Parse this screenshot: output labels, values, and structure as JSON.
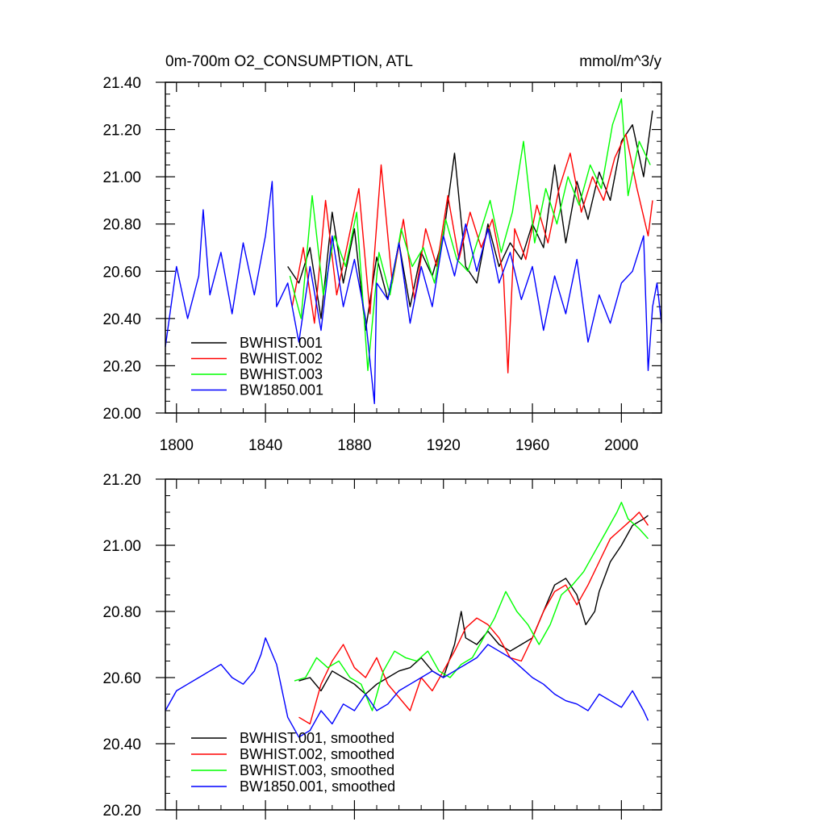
{
  "colors": {
    "BWHIST.001": "#000000",
    "BWHIST.002": "#ff0000",
    "BWHIST.003": "#00ff00",
    "BW1850.001": "#0000ff"
  },
  "chart_data": [
    {
      "type": "line",
      "title": "0m-700m O2_CONSUMPTION, ATL",
      "units": "mmol/m^3/y",
      "xlim": [
        1795,
        2018
      ],
      "ylim": [
        20.0,
        21.4
      ],
      "x_ticks": [
        1800,
        1840,
        1880,
        1920,
        1960,
        2000
      ],
      "x_tick_labels": [
        "1800",
        "1840",
        "1880",
        "1920",
        "1960",
        "2000"
      ],
      "y_ticks": [
        20.0,
        20.2,
        20.4,
        20.6,
        20.8,
        21.0,
        21.2,
        21.4
      ],
      "y_tick_labels": [
        "20.00",
        "20.20",
        "20.40",
        "20.60",
        "20.80",
        "21.00",
        "21.20",
        "21.40"
      ],
      "legend_position": "bottom-left",
      "series": [
        {
          "name": "BWHIST.001",
          "color": "#000000",
          "x": [
            1850,
            1855,
            1860,
            1865,
            1870,
            1875,
            1880,
            1885,
            1890,
            1895,
            1900,
            1905,
            1910,
            1915,
            1920,
            1925,
            1930,
            1935,
            1940,
            1945,
            1950,
            1955,
            1960,
            1965,
            1970,
            1975,
            1980,
            1985,
            1990,
            1995,
            2000,
            2005,
            2010,
            2014
          ],
          "values": [
            20.62,
            20.55,
            20.7,
            20.4,
            20.85,
            20.55,
            20.78,
            20.35,
            20.66,
            20.48,
            20.72,
            20.45,
            20.68,
            20.58,
            20.75,
            21.1,
            20.62,
            20.55,
            20.8,
            20.62,
            20.72,
            20.65,
            20.8,
            20.7,
            21.05,
            20.72,
            20.98,
            20.82,
            21.02,
            20.9,
            21.15,
            21.22,
            21.0,
            21.28
          ]
        },
        {
          "name": "BWHIST.002",
          "color": "#ff0000",
          "x": [
            1852,
            1857,
            1862,
            1867,
            1872,
            1877,
            1882,
            1887,
            1892,
            1897,
            1902,
            1907,
            1912,
            1917,
            1922,
            1927,
            1932,
            1937,
            1942,
            1947,
            1949,
            1952,
            1957,
            1962,
            1967,
            1972,
            1977,
            1982,
            1987,
            1992,
            1997,
            2002,
            2007,
            2012,
            2014
          ],
          "values": [
            20.45,
            20.7,
            20.38,
            20.9,
            20.5,
            20.72,
            20.95,
            20.42,
            21.05,
            20.55,
            20.82,
            20.48,
            20.78,
            20.62,
            20.92,
            20.65,
            20.85,
            20.7,
            20.82,
            20.58,
            20.17,
            20.78,
            20.65,
            20.88,
            20.72,
            20.95,
            21.1,
            20.85,
            21.0,
            20.9,
            21.08,
            21.18,
            20.95,
            20.75,
            20.9
          ]
        },
        {
          "name": "BWHIST.003",
          "color": "#00ff00",
          "x": [
            1851,
            1856,
            1861,
            1866,
            1871,
            1876,
            1881,
            1886,
            1891,
            1896,
            1901,
            1906,
            1911,
            1916,
            1921,
            1926,
            1931,
            1936,
            1941,
            1946,
            1951,
            1956,
            1961,
            1966,
            1971,
            1976,
            1981,
            1986,
            1991,
            1996,
            2000,
            2003,
            2008,
            2013
          ],
          "values": [
            20.58,
            20.4,
            20.92,
            20.5,
            20.75,
            20.62,
            20.85,
            20.18,
            20.68,
            20.5,
            20.78,
            20.62,
            20.7,
            20.55,
            20.82,
            20.65,
            20.6,
            20.75,
            20.9,
            20.68,
            20.85,
            21.15,
            20.72,
            20.95,
            20.8,
            21.0,
            20.88,
            21.05,
            20.95,
            21.22,
            21.33,
            20.92,
            21.15,
            21.05
          ]
        },
        {
          "name": "BW1850.001",
          "color": "#0000ff",
          "x": [
            1795,
            1800,
            1805,
            1810,
            1812,
            1815,
            1820,
            1825,
            1830,
            1835,
            1840,
            1843,
            1845,
            1850,
            1855,
            1860,
            1865,
            1870,
            1875,
            1880,
            1885,
            1889,
            1890,
            1895,
            1900,
            1905,
            1910,
            1915,
            1920,
            1925,
            1930,
            1935,
            1940,
            1945,
            1950,
            1955,
            1960,
            1965,
            1970,
            1975,
            1980,
            1985,
            1990,
            1995,
            2000,
            2005,
            2010,
            2012,
            2014,
            2016,
            2018
          ],
          "values": [
            20.28,
            20.62,
            20.4,
            20.58,
            20.86,
            20.5,
            20.68,
            20.42,
            20.72,
            20.5,
            20.75,
            20.98,
            20.45,
            20.55,
            20.3,
            20.62,
            20.35,
            20.75,
            20.45,
            20.65,
            20.4,
            20.04,
            20.55,
            20.48,
            20.72,
            20.38,
            20.62,
            20.45,
            20.75,
            20.58,
            20.8,
            20.6,
            20.78,
            20.55,
            20.68,
            20.48,
            20.62,
            20.35,
            20.58,
            20.42,
            20.65,
            20.3,
            20.5,
            20.38,
            20.55,
            20.6,
            20.75,
            20.18,
            20.45,
            20.55,
            20.38
          ]
        }
      ]
    },
    {
      "type": "line",
      "title": "",
      "xlim": [
        1795,
        2018
      ],
      "ylim": [
        20.2,
        21.2
      ],
      "x_ticks": [
        1800,
        1840,
        1880,
        1920,
        1960,
        2000
      ],
      "y_ticks": [
        20.2,
        20.4,
        20.6,
        20.8,
        21.0,
        21.2
      ],
      "y_tick_labels": [
        "20.20",
        "20.40",
        "20.60",
        "20.80",
        "21.00",
        "21.20"
      ],
      "legend_position": "bottom-left",
      "series": [
        {
          "name": "BWHIST.001, smoothed",
          "color": "#000000",
          "x": [
            1855,
            1860,
            1865,
            1870,
            1875,
            1880,
            1885,
            1890,
            1895,
            1900,
            1905,
            1910,
            1915,
            1920,
            1925,
            1928,
            1930,
            1935,
            1940,
            1945,
            1950,
            1955,
            1960,
            1965,
            1970,
            1975,
            1980,
            1984,
            1988,
            1990,
            1995,
            2000,
            2005,
            2010,
            2012
          ],
          "values": [
            20.59,
            20.6,
            20.56,
            20.62,
            20.6,
            20.58,
            20.55,
            20.58,
            20.6,
            20.62,
            20.63,
            20.66,
            20.62,
            20.6,
            20.7,
            20.8,
            20.72,
            20.7,
            20.74,
            20.7,
            20.68,
            20.7,
            20.72,
            20.8,
            20.88,
            20.9,
            20.85,
            20.76,
            20.8,
            20.86,
            20.95,
            21.0,
            21.06,
            21.08,
            21.09
          ]
        },
        {
          "name": "BWHIST.002, smoothed",
          "color": "#ff0000",
          "x": [
            1855,
            1860,
            1865,
            1870,
            1875,
            1880,
            1885,
            1890,
            1895,
            1900,
            1905,
            1910,
            1915,
            1920,
            1925,
            1930,
            1935,
            1940,
            1945,
            1950,
            1955,
            1960,
            1965,
            1970,
            1975,
            1980,
            1985,
            1990,
            1995,
            2000,
            2005,
            2008,
            2012
          ],
          "values": [
            20.48,
            20.46,
            20.58,
            20.65,
            20.7,
            20.63,
            20.6,
            20.66,
            20.58,
            20.54,
            20.5,
            20.6,
            20.56,
            20.62,
            20.68,
            20.75,
            20.78,
            20.76,
            20.72,
            20.66,
            20.65,
            20.72,
            20.8,
            20.86,
            20.88,
            20.82,
            20.88,
            20.95,
            21.02,
            21.05,
            21.08,
            21.1,
            21.06
          ]
        },
        {
          "name": "BWHIST.003, smoothed",
          "color": "#00ff00",
          "x": [
            1853,
            1858,
            1863,
            1868,
            1873,
            1878,
            1883,
            1888,
            1893,
            1898,
            1903,
            1908,
            1913,
            1918,
            1923,
            1928,
            1933,
            1938,
            1943,
            1948,
            1953,
            1958,
            1963,
            1968,
            1973,
            1978,
            1983,
            1988,
            1993,
            1998,
            2000,
            2003,
            2008,
            2012
          ],
          "values": [
            20.59,
            20.6,
            20.66,
            20.63,
            20.65,
            20.6,
            20.58,
            20.5,
            20.62,
            20.68,
            20.66,
            20.65,
            20.68,
            20.62,
            20.6,
            20.64,
            20.66,
            20.72,
            20.78,
            20.86,
            20.8,
            20.76,
            20.7,
            20.76,
            20.85,
            20.88,
            20.92,
            20.98,
            21.04,
            21.1,
            21.13,
            21.08,
            21.05,
            21.02
          ]
        },
        {
          "name": "BW1850.001, smoothed",
          "color": "#0000ff",
          "x": [
            1795,
            1800,
            1805,
            1810,
            1815,
            1820,
            1825,
            1830,
            1835,
            1838,
            1840,
            1845,
            1850,
            1855,
            1860,
            1865,
            1870,
            1875,
            1880,
            1885,
            1890,
            1895,
            1900,
            1905,
            1910,
            1915,
            1920,
            1925,
            1930,
            1935,
            1940,
            1945,
            1950,
            1955,
            1960,
            1965,
            1970,
            1975,
            1980,
            1985,
            1990,
            1995,
            2000,
            2005,
            2010,
            2012
          ],
          "values": [
            20.5,
            20.56,
            20.58,
            20.6,
            20.62,
            20.64,
            20.6,
            20.58,
            20.62,
            20.67,
            20.72,
            20.64,
            20.48,
            20.42,
            20.44,
            20.5,
            20.46,
            20.52,
            20.5,
            20.55,
            20.5,
            20.52,
            20.56,
            20.58,
            20.6,
            20.62,
            20.6,
            20.62,
            20.64,
            20.66,
            20.7,
            20.68,
            20.66,
            20.63,
            20.6,
            20.58,
            20.55,
            20.53,
            20.52,
            20.5,
            20.55,
            20.53,
            20.51,
            20.56,
            20.5,
            20.47
          ]
        }
      ]
    }
  ]
}
